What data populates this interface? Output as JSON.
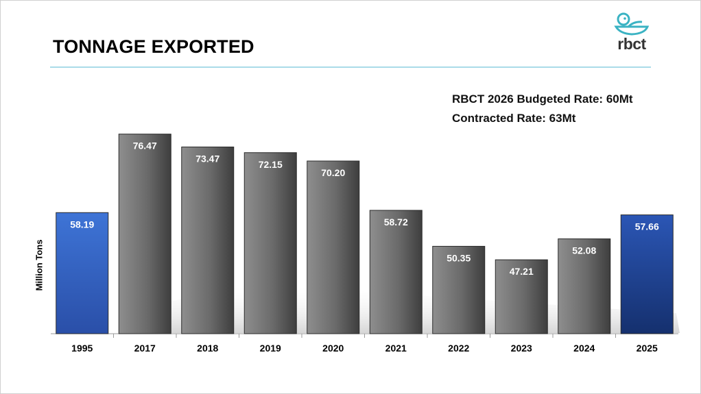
{
  "slide": {
    "title": "TONNAGE EXPORTED",
    "logo_icon": "rbct-bird-logo-icon",
    "logo_text": "rbct",
    "notes": [
      "RBCT 2026 Budgeted Rate: 60Mt",
      "Contracted Rate: 63Mt"
    ]
  },
  "colors": {
    "blue_bar": "#2f5dbf",
    "grey_bar": "#6b6b6b",
    "rule": "#a9dbe8",
    "logo": "#3bb3c3"
  },
  "chart_data": {
    "type": "bar",
    "title": "TONNAGE EXPORTED",
    "xlabel": "",
    "ylabel": "Million Tons",
    "ylim": [
      30,
      82
    ],
    "grid": false,
    "categories": [
      "1995",
      "2017",
      "2018",
      "2019",
      "2020",
      "2021",
      "2022",
      "2023",
      "2024",
      "2025"
    ],
    "values": [
      58.19,
      76.47,
      73.47,
      72.15,
      70.2,
      58.72,
      50.35,
      47.21,
      52.08,
      57.66
    ],
    "data_labels": [
      "58.19",
      "76.47",
      "73.47",
      "72.15",
      "70.20",
      "58.72",
      "50.35",
      "47.21",
      "52.08",
      "57.66"
    ],
    "highlighted": [
      "1995",
      "2025"
    ]
  }
}
